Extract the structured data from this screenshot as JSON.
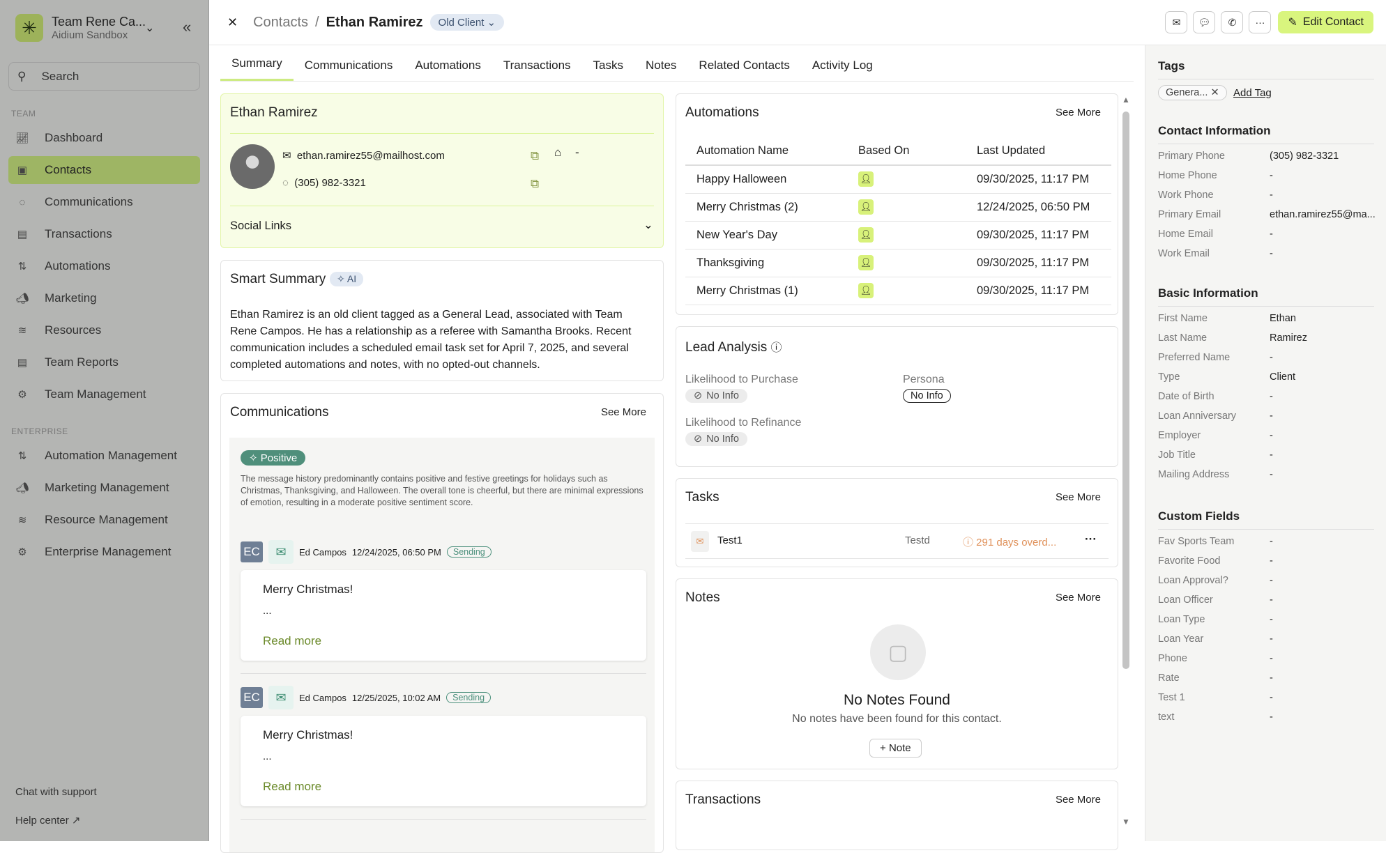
{
  "sidebar": {
    "team_name": "Team Rene Ca...",
    "org": "Aidium Sandbox",
    "search_placeholder": "Search",
    "section_team": "TEAM",
    "section_enterprise": "ENTERPRISE",
    "team_items": [
      {
        "label": "Dashboard",
        "icon": "chart-line-icon"
      },
      {
        "label": "Contacts",
        "icon": "contact-book-icon"
      },
      {
        "label": "Communications",
        "icon": "chat-icon"
      },
      {
        "label": "Transactions",
        "icon": "document-icon"
      },
      {
        "label": "Automations",
        "icon": "sort-icon"
      },
      {
        "label": "Marketing",
        "icon": "megaphone-icon"
      },
      {
        "label": "Resources",
        "icon": "layers-icon"
      },
      {
        "label": "Team Reports",
        "icon": "report-icon"
      },
      {
        "label": "Team Management",
        "icon": "gear-icon"
      }
    ],
    "enterprise_items": [
      {
        "label": "Automation Management"
      },
      {
        "label": "Marketing Management"
      },
      {
        "label": "Resource Management"
      },
      {
        "label": "Enterprise Management"
      }
    ],
    "chat_support": "Chat with support",
    "help_center": "Help center"
  },
  "header": {
    "breadcrumb_parent": "Contacts",
    "separator": "/",
    "contact_name": "Ethan Ramirez",
    "status": "Old Client",
    "edit_label": "Edit Contact"
  },
  "tabs": [
    "Summary",
    "Communications",
    "Automations",
    "Transactions",
    "Tasks",
    "Notes",
    "Related Contacts",
    "Activity Log"
  ],
  "profile": {
    "name": "Ethan Ramirez",
    "email": "ethan.ramirez55@mailhost.com",
    "phone": "(305) 982-3321",
    "home": "-",
    "social_links": "Social Links"
  },
  "smart_summary": {
    "title": "Smart Summary",
    "badge": "AI",
    "text": "Ethan Ramirez is an old client tagged as a General Lead, associated with Team Rene Campos. He has a relationship as a referee with Samantha Brooks. Recent communication includes a scheduled email task set for April 7, 2025, and several completed automations and notes, with no opted-out channels."
  },
  "communications": {
    "title": "Communications",
    "see_more": "See More",
    "sentiment": "Positive",
    "sentiment_text": "The message history predominantly contains positive and festive greetings for holidays such as Christmas, Thanksgiving, and Halloween. The overall tone is cheerful, but there are minimal expressions of emotion, resulting in a moderate positive sentiment score.",
    "messages": [
      {
        "initials": "EC",
        "sender": "Ed Campos",
        "date": "12/24/2025, 06:50 PM",
        "status": "Sending",
        "title": "Merry Christmas!",
        "body": "...",
        "read_more": "Read more"
      },
      {
        "initials": "EC",
        "sender": "Ed Campos",
        "date": "12/25/2025, 10:02 AM",
        "status": "Sending",
        "title": "Merry Christmas!",
        "body": "...",
        "read_more": "Read more"
      }
    ]
  },
  "automations": {
    "title": "Automations",
    "see_more": "See More",
    "columns": [
      "Automation Name",
      "Based On",
      "Last Updated"
    ],
    "rows": [
      {
        "name": "Happy Halloween",
        "updated": "09/30/2025, 11:17 PM"
      },
      {
        "name": "Merry Christmas (2)",
        "updated": "12/24/2025, 06:50 PM"
      },
      {
        "name": "New Year's Day",
        "updated": "09/30/2025, 11:17 PM"
      },
      {
        "name": "Thanksgiving",
        "updated": "09/30/2025, 11:17 PM"
      },
      {
        "name": "Merry Christmas (1)",
        "updated": "09/30/2025, 11:17 PM"
      }
    ]
  },
  "lead_analysis": {
    "title": "Lead Analysis",
    "purchase_label": "Likelihood to Purchase",
    "purchase_value": "No Info",
    "persona_label": "Persona",
    "persona_value": "No Info",
    "refinance_label": "Likelihood to Refinance",
    "refinance_value": "No Info"
  },
  "tasks": {
    "title": "Tasks",
    "see_more": "See More",
    "items": [
      {
        "name": "Test1",
        "desc": "Testd",
        "due": "291 days overd..."
      }
    ]
  },
  "notes": {
    "title": "Notes",
    "see_more": "See More",
    "empty_title": "No Notes Found",
    "empty_text": "No notes have been found for this contact.",
    "add_label": "Note"
  },
  "transactions": {
    "title": "Transactions",
    "see_more": "See More"
  },
  "panel": {
    "tags_title": "Tags",
    "tags": [
      "Genera..."
    ],
    "add_tag": "Add Tag",
    "contact_title": "Contact Information",
    "contact": [
      [
        "Primary Phone",
        "(305) 982-3321"
      ],
      [
        "Home Phone",
        "-"
      ],
      [
        "Work Phone",
        "-"
      ],
      [
        "Primary Email",
        "ethan.ramirez55@ma..."
      ],
      [
        "Home Email",
        "-"
      ],
      [
        "Work Email",
        "-"
      ]
    ],
    "basic_title": "Basic Information",
    "basic": [
      [
        "First Name",
        "Ethan"
      ],
      [
        "Last Name",
        "Ramirez"
      ],
      [
        "Preferred Name",
        "-"
      ],
      [
        "Type",
        "Client"
      ],
      [
        "Date of Birth",
        "-"
      ],
      [
        "Loan Anniversary",
        "-"
      ],
      [
        "Employer",
        "-"
      ],
      [
        "Job Title",
        "-"
      ],
      [
        "Mailing Address",
        "-"
      ]
    ],
    "custom_title": "Custom Fields",
    "custom": [
      [
        "Fav Sports Team",
        "-"
      ],
      [
        "Favorite Food",
        "-"
      ],
      [
        "Loan Approval?",
        "-"
      ],
      [
        "Loan Officer",
        "-"
      ],
      [
        "Loan Type",
        "-"
      ],
      [
        "Loan Year",
        "-"
      ],
      [
        "Phone",
        "-"
      ],
      [
        "Rate",
        "-"
      ],
      [
        "Test 1",
        "-"
      ],
      [
        "text",
        "-"
      ]
    ]
  },
  "colors": {
    "accent": "#d9f57e",
    "sidebar_overlay": "#b4b5b3",
    "sentiment": "#4a8f7b",
    "overdue": "#e0915a"
  }
}
